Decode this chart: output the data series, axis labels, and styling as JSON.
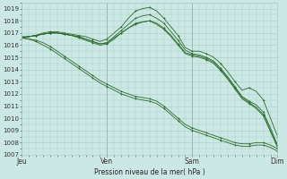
{
  "title": "Pression niveau de la mer( hPa )",
  "bg_color": "#cce8e4",
  "grid_color": "#aaccc8",
  "line_color": "#2d6a2d",
  "ylim": [
    1007,
    1019.5
  ],
  "yticks": [
    1007,
    1008,
    1009,
    1010,
    1011,
    1012,
    1013,
    1014,
    1015,
    1016,
    1017,
    1018,
    1019
  ],
  "xtick_labels": [
    "Jeu",
    "Ven",
    "Sam",
    "Dim"
  ],
  "xtick_positions": [
    0,
    72,
    144,
    216
  ],
  "total_steps": 216,
  "series": [
    {
      "pts": [
        [
          0,
          1016.6
        ],
        [
          6,
          1016.7
        ],
        [
          12,
          1016.8
        ],
        [
          18,
          1017.0
        ],
        [
          24,
          1017.1
        ],
        [
          30,
          1017.1
        ],
        [
          36,
          1017.0
        ],
        [
          42,
          1016.9
        ],
        [
          48,
          1016.8
        ],
        [
          54,
          1016.7
        ],
        [
          60,
          1016.5
        ],
        [
          66,
          1016.3
        ],
        [
          72,
          1016.5
        ],
        [
          78,
          1017.0
        ],
        [
          84,
          1017.5
        ],
        [
          90,
          1018.2
        ],
        [
          96,
          1018.8
        ],
        [
          102,
          1019.0
        ],
        [
          108,
          1019.1
        ],
        [
          114,
          1018.8
        ],
        [
          120,
          1018.2
        ],
        [
          126,
          1017.5
        ],
        [
          132,
          1016.8
        ],
        [
          138,
          1015.8
        ],
        [
          144,
          1015.5
        ],
        [
          150,
          1015.5
        ],
        [
          156,
          1015.3
        ],
        [
          162,
          1015.0
        ],
        [
          168,
          1014.5
        ],
        [
          174,
          1013.8
        ],
        [
          180,
          1013.0
        ],
        [
          186,
          1012.3
        ],
        [
          192,
          1012.5
        ],
        [
          198,
          1012.2
        ],
        [
          204,
          1011.5
        ],
        [
          210,
          1010.0
        ],
        [
          216,
          1008.5
        ]
      ]
    },
    {
      "pts": [
        [
          0,
          1016.6
        ],
        [
          6,
          1016.7
        ],
        [
          12,
          1016.8
        ],
        [
          18,
          1016.9
        ],
        [
          24,
          1017.0
        ],
        [
          30,
          1017.0
        ],
        [
          36,
          1016.9
        ],
        [
          42,
          1016.8
        ],
        [
          48,
          1016.7
        ],
        [
          54,
          1016.5
        ],
        [
          60,
          1016.3
        ],
        [
          66,
          1016.1
        ],
        [
          72,
          1016.2
        ],
        [
          78,
          1016.7
        ],
        [
          84,
          1017.2
        ],
        [
          90,
          1017.7
        ],
        [
          96,
          1018.2
        ],
        [
          102,
          1018.4
        ],
        [
          108,
          1018.5
        ],
        [
          114,
          1018.2
        ],
        [
          120,
          1017.8
        ],
        [
          126,
          1017.1
        ],
        [
          132,
          1016.4
        ],
        [
          138,
          1015.6
        ],
        [
          144,
          1015.3
        ],
        [
          150,
          1015.2
        ],
        [
          156,
          1015.0
        ],
        [
          162,
          1014.7
        ],
        [
          168,
          1014.1
        ],
        [
          174,
          1013.4
        ],
        [
          180,
          1012.6
        ],
        [
          186,
          1011.8
        ],
        [
          192,
          1011.4
        ],
        [
          198,
          1011.1
        ],
        [
          204,
          1010.5
        ],
        [
          210,
          1009.2
        ],
        [
          216,
          1007.8
        ]
      ]
    },
    {
      "pts": [
        [
          0,
          1016.6
        ],
        [
          6,
          1016.5
        ],
        [
          12,
          1016.4
        ],
        [
          18,
          1016.2
        ],
        [
          24,
          1015.9
        ],
        [
          30,
          1015.5
        ],
        [
          36,
          1015.1
        ],
        [
          42,
          1014.7
        ],
        [
          48,
          1014.3
        ],
        [
          54,
          1013.9
        ],
        [
          60,
          1013.5
        ],
        [
          66,
          1013.1
        ],
        [
          72,
          1012.8
        ],
        [
          78,
          1012.5
        ],
        [
          84,
          1012.2
        ],
        [
          90,
          1012.0
        ],
        [
          96,
          1011.8
        ],
        [
          102,
          1011.7
        ],
        [
          108,
          1011.6
        ],
        [
          114,
          1011.4
        ],
        [
          120,
          1011.0
        ],
        [
          126,
          1010.5
        ],
        [
          132,
          1010.0
        ],
        [
          138,
          1009.5
        ],
        [
          144,
          1009.2
        ],
        [
          150,
          1009.0
        ],
        [
          156,
          1008.8
        ],
        [
          162,
          1008.6
        ],
        [
          168,
          1008.4
        ],
        [
          174,
          1008.2
        ],
        [
          180,
          1008.0
        ],
        [
          186,
          1007.9
        ],
        [
          192,
          1007.9
        ],
        [
          198,
          1008.0
        ],
        [
          204,
          1008.0
        ],
        [
          210,
          1007.8
        ],
        [
          216,
          1007.5
        ]
      ]
    },
    {
      "pts": [
        [
          0,
          1016.6
        ],
        [
          6,
          1016.5
        ],
        [
          12,
          1016.3
        ],
        [
          18,
          1016.0
        ],
        [
          24,
          1015.7
        ],
        [
          30,
          1015.3
        ],
        [
          36,
          1014.9
        ],
        [
          42,
          1014.5
        ],
        [
          48,
          1014.1
        ],
        [
          54,
          1013.7
        ],
        [
          60,
          1013.3
        ],
        [
          66,
          1012.9
        ],
        [
          72,
          1012.6
        ],
        [
          78,
          1012.3
        ],
        [
          84,
          1012.0
        ],
        [
          90,
          1011.8
        ],
        [
          96,
          1011.6
        ],
        [
          102,
          1011.5
        ],
        [
          108,
          1011.4
        ],
        [
          114,
          1011.2
        ],
        [
          120,
          1010.8
        ],
        [
          126,
          1010.3
        ],
        [
          132,
          1009.8
        ],
        [
          138,
          1009.3
        ],
        [
          144,
          1009.0
        ],
        [
          150,
          1008.8
        ],
        [
          156,
          1008.6
        ],
        [
          162,
          1008.4
        ],
        [
          168,
          1008.2
        ],
        [
          174,
          1008.0
        ],
        [
          180,
          1007.8
        ],
        [
          186,
          1007.7
        ],
        [
          192,
          1007.7
        ],
        [
          198,
          1007.8
        ],
        [
          204,
          1007.8
        ],
        [
          210,
          1007.6
        ],
        [
          216,
          1007.3
        ]
      ]
    },
    {
      "pts": [
        [
          0,
          1016.6
        ],
        [
          6,
          1016.7
        ],
        [
          12,
          1016.8
        ],
        [
          18,
          1016.9
        ],
        [
          24,
          1017.0
        ],
        [
          30,
          1017.0
        ],
        [
          36,
          1016.9
        ],
        [
          42,
          1016.8
        ],
        [
          48,
          1016.6
        ],
        [
          54,
          1016.4
        ],
        [
          60,
          1016.2
        ],
        [
          66,
          1016.0
        ],
        [
          72,
          1016.1
        ],
        [
          78,
          1016.5
        ],
        [
          84,
          1017.0
        ],
        [
          90,
          1017.4
        ],
        [
          96,
          1017.8
        ],
        [
          102,
          1017.9
        ],
        [
          108,
          1018.0
        ],
        [
          114,
          1017.7
        ],
        [
          120,
          1017.3
        ],
        [
          126,
          1016.7
        ],
        [
          132,
          1016.0
        ],
        [
          138,
          1015.3
        ],
        [
          144,
          1015.1
        ],
        [
          150,
          1015.0
        ],
        [
          156,
          1014.8
        ],
        [
          162,
          1014.5
        ],
        [
          168,
          1013.9
        ],
        [
          174,
          1013.2
        ],
        [
          180,
          1012.4
        ],
        [
          186,
          1011.6
        ],
        [
          192,
          1011.2
        ],
        [
          198,
          1010.8
        ],
        [
          204,
          1010.2
        ],
        [
          210,
          1008.9
        ],
        [
          216,
          1007.6
        ]
      ]
    },
    {
      "pts": [
        [
          0,
          1016.7
        ],
        [
          6,
          1016.7
        ],
        [
          12,
          1016.8
        ],
        [
          18,
          1016.9
        ],
        [
          24,
          1017.0
        ],
        [
          30,
          1017.0
        ],
        [
          36,
          1016.9
        ],
        [
          42,
          1016.8
        ],
        [
          48,
          1016.7
        ],
        [
          54,
          1016.5
        ],
        [
          60,
          1016.3
        ],
        [
          66,
          1016.1
        ],
        [
          72,
          1016.2
        ],
        [
          78,
          1016.6
        ],
        [
          84,
          1017.0
        ],
        [
          90,
          1017.4
        ],
        [
          96,
          1017.7
        ],
        [
          102,
          1017.9
        ],
        [
          108,
          1018.0
        ],
        [
          114,
          1017.8
        ],
        [
          120,
          1017.4
        ],
        [
          126,
          1016.8
        ],
        [
          132,
          1016.1
        ],
        [
          138,
          1015.4
        ],
        [
          144,
          1015.2
        ],
        [
          150,
          1015.1
        ],
        [
          156,
          1014.9
        ],
        [
          162,
          1014.6
        ],
        [
          168,
          1014.0
        ],
        [
          174,
          1013.3
        ],
        [
          180,
          1012.5
        ],
        [
          186,
          1011.7
        ],
        [
          192,
          1011.3
        ],
        [
          198,
          1010.9
        ],
        [
          204,
          1010.3
        ],
        [
          210,
          1009.0
        ],
        [
          216,
          1007.7
        ]
      ]
    }
  ]
}
